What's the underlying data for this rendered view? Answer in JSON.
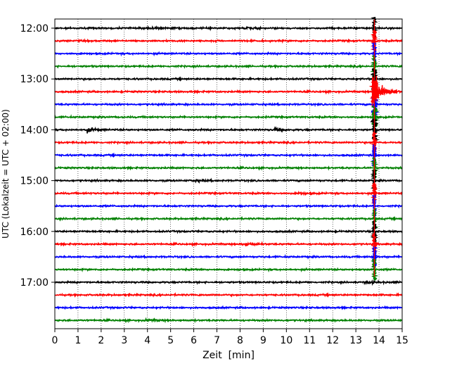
{
  "chart_data": {
    "type": "line",
    "title": "",
    "xlabel": "Zeit  [min]",
    "ylabel": "UTC (Lokalzeit = UTC + 02:00)",
    "xlim": [
      0,
      15
    ],
    "x_ticks": [
      0,
      1,
      2,
      3,
      4,
      5,
      6,
      7,
      8,
      9,
      10,
      11,
      12,
      13,
      14,
      15
    ],
    "x_tick_labels": [
      "0",
      "1",
      "2",
      "3",
      "4",
      "5",
      "6",
      "7",
      "8",
      "9",
      "10",
      "11",
      "12",
      "13",
      "14",
      "15"
    ],
    "y_tick_labels": [
      "12:00",
      "13:00",
      "14:00",
      "15:00",
      "16:00",
      "17:00"
    ],
    "grid": "vertical dotted lines at each minute",
    "legend": "none",
    "trace_interval_min": 15,
    "first_trace": "12:00",
    "trace_count": 24,
    "color_cycle": [
      "#000000",
      "#ff0000",
      "#0000ff",
      "#008000"
    ],
    "events": [
      {
        "trace": "12:00",
        "minute": 4.0,
        "amplitude": 0.4
      },
      {
        "trace": "12:00",
        "minute": 8.2,
        "amplitude": 0.3
      },
      {
        "trace": "13:15",
        "minute": 13.9,
        "amplitude": 2.5
      },
      {
        "trace": "14:00",
        "minute": 1.4,
        "amplitude": 0.7
      },
      {
        "trace": "14:00",
        "minute": 9.5,
        "amplitude": 0.5
      },
      {
        "trace": "15:00",
        "minute": 6.0,
        "amplitude": 0.3
      },
      {
        "trace": "15:15",
        "minute": 10.5,
        "amplitude": 0.3
      },
      {
        "trace": "16:15",
        "minute": 8.2,
        "amplitude": 0.8
      },
      {
        "trace": "17:00",
        "minute": 13.5,
        "amplitude": 0.4
      },
      {
        "trace": "17:45",
        "minute": 4.0,
        "amplitude": 0.3
      }
    ],
    "large_event": {
      "start_trace": "12:00",
      "end_trace": "16:45",
      "minute": 13.8
    }
  }
}
